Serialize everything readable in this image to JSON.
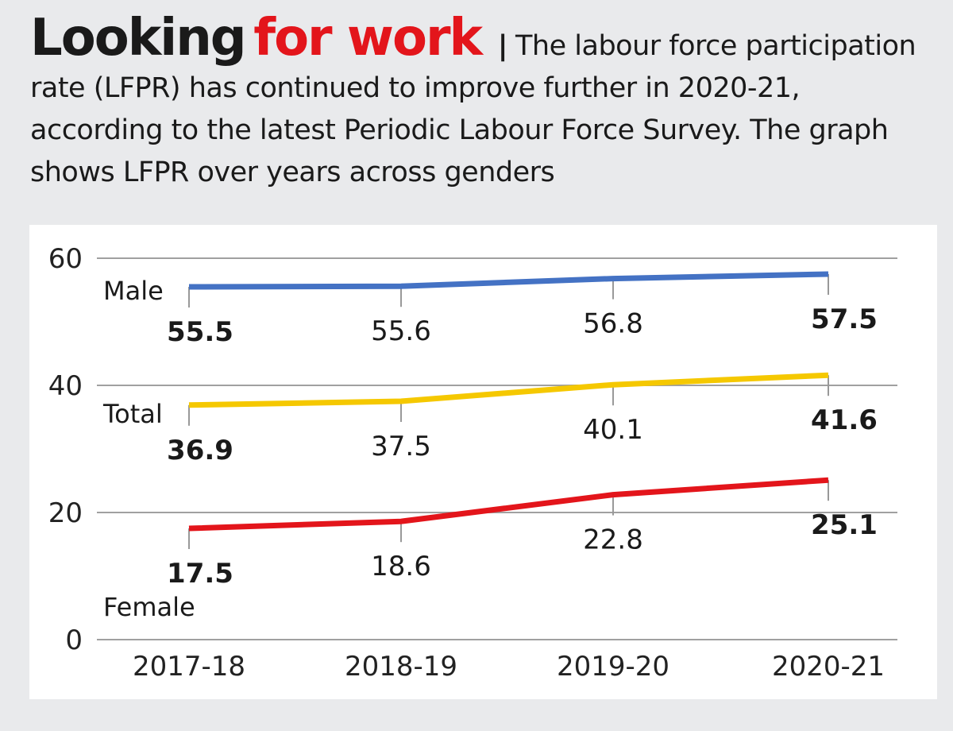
{
  "header": {
    "title_part1": "Looking",
    "title_part2": "for work",
    "separator": "|",
    "subtitle": "The labour force participation rate (LFPR) has continued to improve further in 2020-21, according to the latest Periodic Labour Force Survey. The graph shows LFPR over years across genders"
  },
  "colors": {
    "background": "#e9eaec",
    "title_accent": "#e3151b",
    "male": "#4472c4",
    "total": "#f5c800",
    "female": "#e3151b",
    "grid": "#a0a0a0"
  },
  "chart_data": {
    "type": "line",
    "categories": [
      "2017-18",
      "2018-19",
      "2019-20",
      "2020-21"
    ],
    "ylim": [
      0,
      60
    ],
    "yticks": [
      0,
      20,
      40,
      60
    ],
    "grid": true,
    "series": [
      {
        "name": "Male",
        "color": "#4472c4",
        "values": [
          55.5,
          55.6,
          56.8,
          57.5
        ],
        "labels": [
          "55.5",
          "55.6",
          "56.8",
          "57.5"
        ]
      },
      {
        "name": "Total",
        "color": "#f5c800",
        "values": [
          36.9,
          37.5,
          40.1,
          41.6
        ],
        "labels": [
          "36.9",
          "37.5",
          "40.1",
          "41.6"
        ]
      },
      {
        "name": "Female",
        "color": "#e3151b",
        "values": [
          17.5,
          18.6,
          22.8,
          25.1
        ],
        "labels": [
          "17.5",
          "18.6",
          "22.8",
          "25.1"
        ]
      }
    ]
  }
}
